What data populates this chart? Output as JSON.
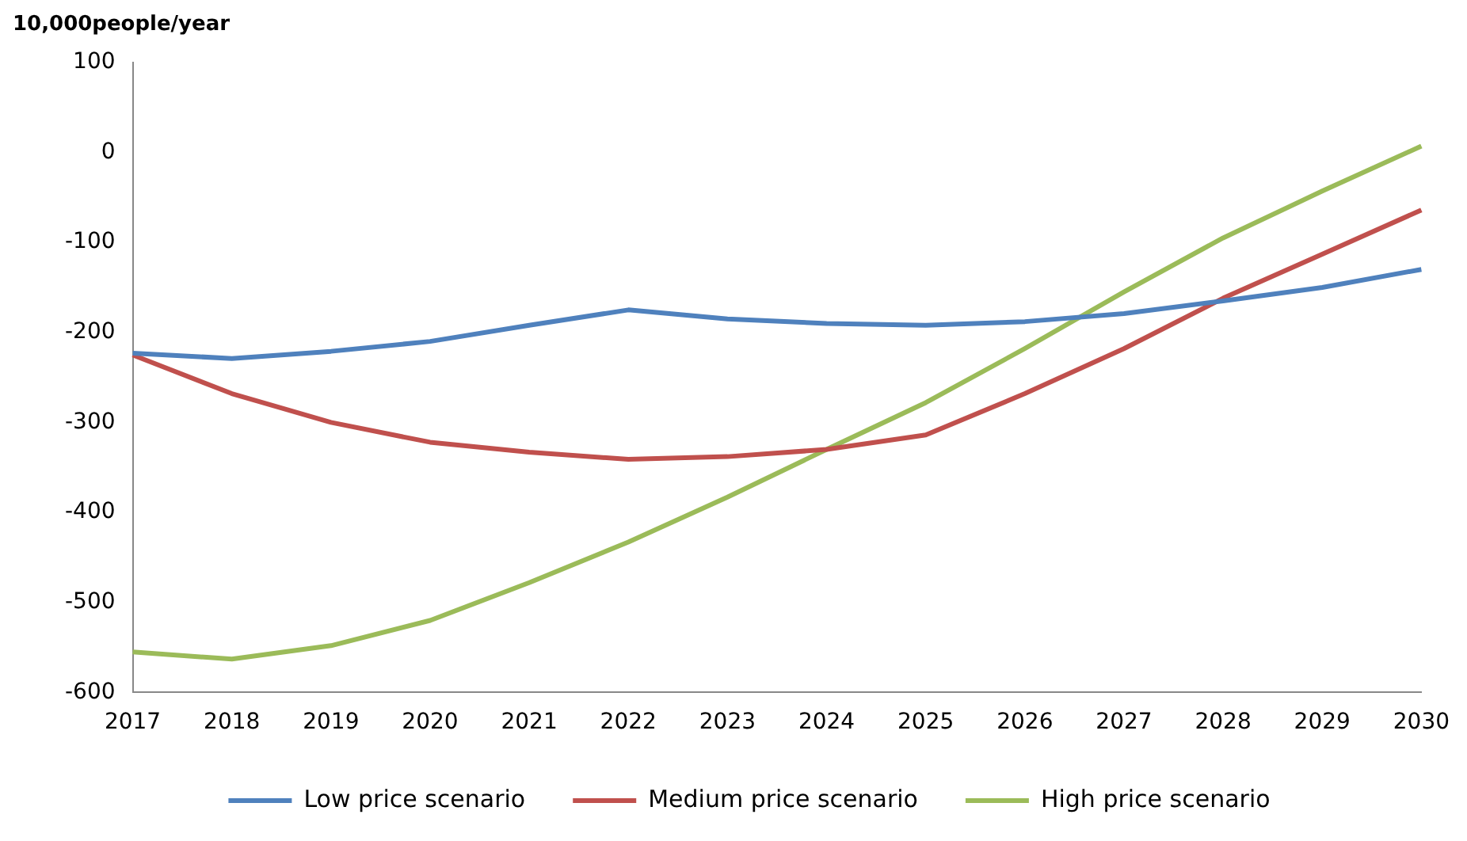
{
  "chart_data": {
    "type": "line",
    "ylabel": "10,000people/year",
    "categories": [
      "2017",
      "2018",
      "2019",
      "2020",
      "2021",
      "2022",
      "2023",
      "2024",
      "2025",
      "2026",
      "2027",
      "2028",
      "2029",
      "2030"
    ],
    "series": [
      {
        "name": "Low price scenario",
        "color": "#4f81bd",
        "values": [
          -223,
          -229,
          -221,
          -210,
          -192,
          -175,
          -185,
          -190,
          -192,
          -188,
          -179,
          -165,
          -150,
          -130
        ]
      },
      {
        "name": "Medium price scenario",
        "color": "#c0504d",
        "values": [
          -225,
          -268,
          -300,
          -322,
          -333,
          -341,
          -338,
          -330,
          -314,
          -268,
          -218,
          -162,
          -113,
          -64
        ]
      },
      {
        "name": "High price scenario",
        "color": "#9bbb59",
        "values": [
          -555,
          -563,
          -548,
          -520,
          -478,
          -433,
          -383,
          -330,
          -278,
          -218,
          -155,
          -95,
          -43,
          7
        ]
      }
    ],
    "ylim": [
      -600,
      100
    ],
    "yticks": [
      -600,
      -500,
      -400,
      -300,
      -200,
      -100,
      0,
      100
    ],
    "grid": false,
    "legend": "bottom",
    "marker": "none",
    "line_style": "solid"
  }
}
